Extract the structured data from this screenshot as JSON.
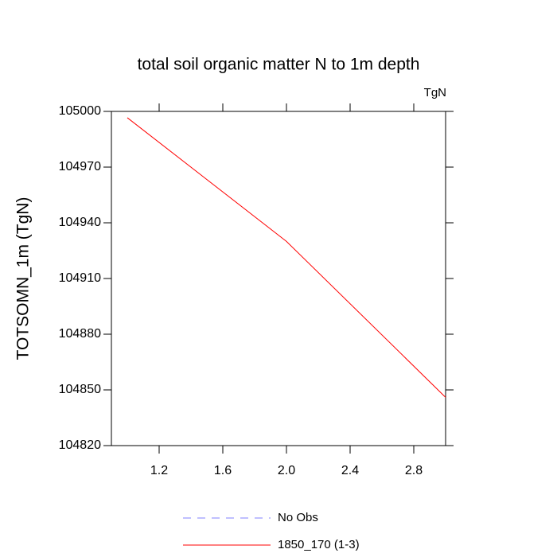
{
  "chart_data": {
    "type": "line",
    "title": "total soil organic matter N to 1m depth",
    "units": "TgN",
    "y_label": "TOTSOMN_1m  (TgN)",
    "x": [
      1,
      2,
      3
    ],
    "series": [
      {
        "name": "No Obs",
        "color": "#8080ff",
        "dashed": true,
        "values": [
          null,
          null,
          null
        ]
      },
      {
        "name": "1850_170 (1-3)",
        "color": "#ff0000",
        "dashed": false,
        "values": [
          104996.6,
          104930,
          104846
        ]
      }
    ],
    "xlim": [
      0.9,
      3.0
    ],
    "xticks": [
      1.2,
      1.6,
      {
        "value": 2.0,
        "label": "2.0"
      },
      2.4,
      2.8
    ],
    "ylim": [
      104820,
      105000
    ],
    "yticks": [
      104820,
      104850,
      104880,
      104910,
      104940,
      104970,
      105000
    ]
  }
}
